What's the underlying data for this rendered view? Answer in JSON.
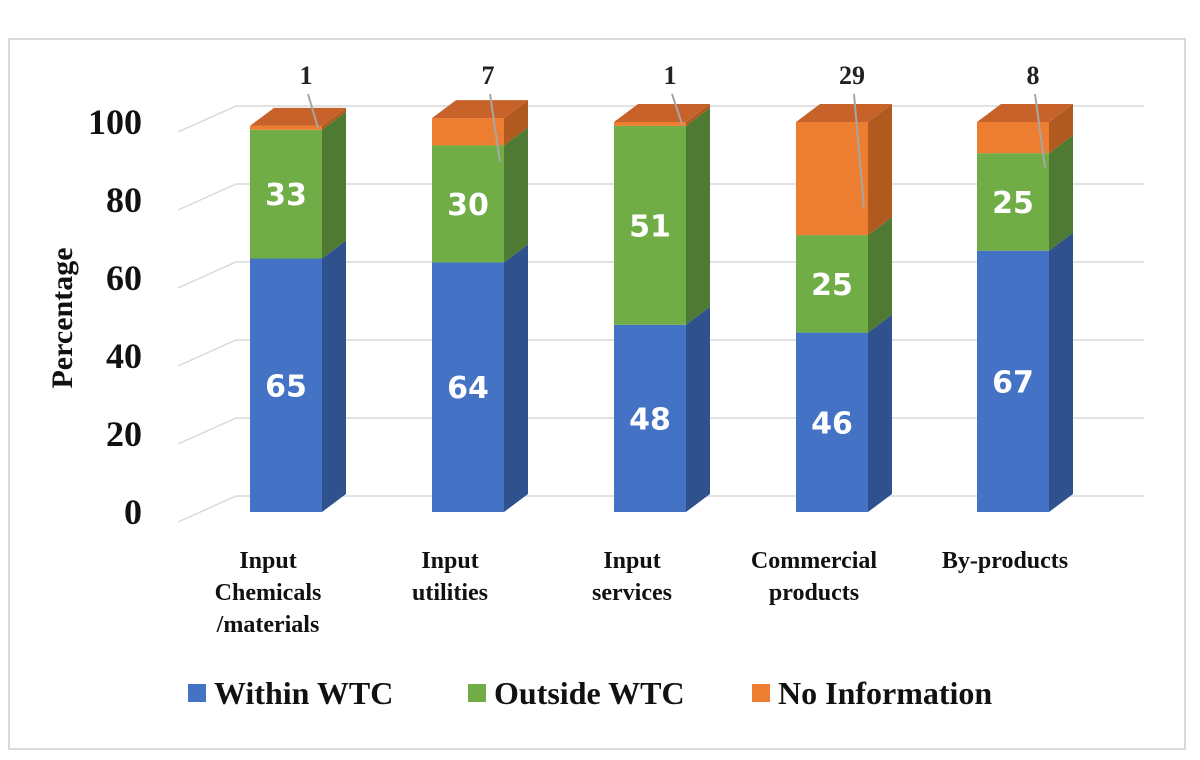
{
  "chart_data": {
    "type": "bar",
    "stacked": true,
    "three_d": true,
    "title": "",
    "xlabel": "",
    "ylabel": "Percentage",
    "ylim": [
      0,
      100
    ],
    "yticks": [
      "0",
      "20",
      "40",
      "60",
      "80",
      "100"
    ],
    "grid": true,
    "legend_position": "bottom",
    "categories": [
      [
        "Input",
        "Chemicals",
        "/materials"
      ],
      [
        "Input",
        "utilities"
      ],
      [
        "Input",
        "services"
      ],
      [
        "Commercial",
        "products"
      ],
      [
        "By-products"
      ]
    ],
    "series": [
      {
        "name": "Within WTC",
        "color": "#4472c4",
        "side_color": "#2f528f",
        "top_color": "#5b85d2",
        "values": [
          65,
          64,
          48,
          46,
          67
        ]
      },
      {
        "name": "Outside WTC",
        "color": "#70ad47",
        "side_color": "#4e7a33",
        "top_color": "#86bf5e",
        "values": [
          33,
          30,
          51,
          25,
          25
        ]
      },
      {
        "name": "No Information",
        "color": "#ed7d31",
        "side_color": "#b05a1f",
        "top_color": "#c7622a",
        "values": [
          1,
          7,
          1,
          29,
          8
        ]
      }
    ]
  }
}
